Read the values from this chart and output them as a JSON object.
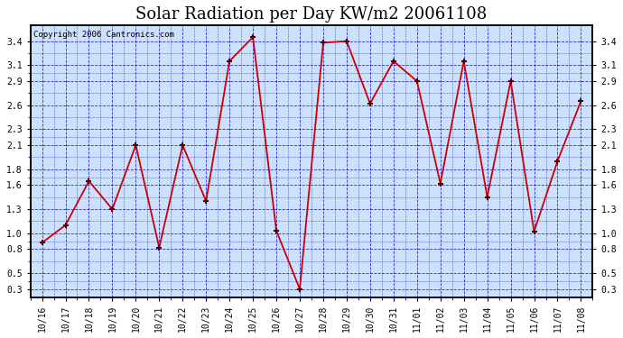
{
  "title": "Solar Radiation per Day KW/m2 20061108",
  "copyright": "Copyright 2006 Cantronics.com",
  "x_labels": [
    "10/16",
    "10/17",
    "10/18",
    "10/19",
    "10/20",
    "10/21",
    "10/22",
    "10/23",
    "10/24",
    "10/25",
    "10/26",
    "10/27",
    "10/28",
    "10/29",
    "10/30",
    "10/31",
    "11/01",
    "11/02",
    "11/03",
    "11/04",
    "11/05",
    "11/06",
    "11/07",
    "11/08"
  ],
  "y_values": [
    0.88,
    1.1,
    1.65,
    1.3,
    2.1,
    0.82,
    2.1,
    1.4,
    3.15,
    3.45,
    1.03,
    0.3,
    3.38,
    3.4,
    2.62,
    3.15,
    2.9,
    1.62,
    3.15,
    1.45,
    2.9,
    1.02,
    1.9,
    2.65
  ],
  "line_color": "#cc0000",
  "marker_color": "#550000",
  "bg_color": "#cce0ff",
  "outer_bg": "#ffffff",
  "grid_color": "#0000cc",
  "ylim": [
    0.2,
    3.6
  ],
  "yticks": [
    0.3,
    0.5,
    0.8,
    1.0,
    1.3,
    1.6,
    1.8,
    2.1,
    2.3,
    2.6,
    2.9,
    3.1,
    3.4
  ],
  "title_fontsize": 13,
  "copyright_fontsize": 6.5,
  "tick_fontsize": 7
}
